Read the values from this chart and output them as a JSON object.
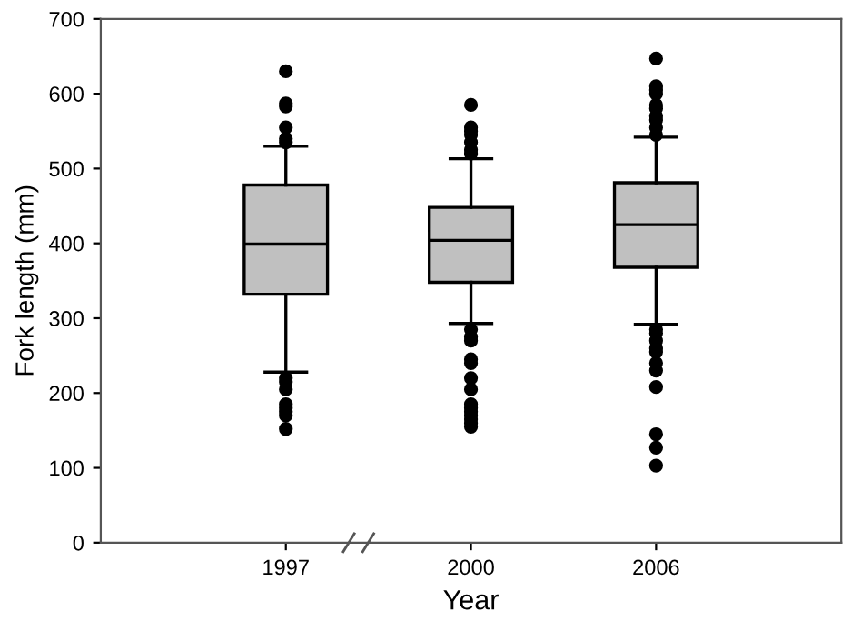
{
  "chart_data": {
    "type": "box",
    "xlabel": "Year",
    "ylabel": "Fork length (mm)",
    "categories": [
      "1997",
      "2000",
      "2006"
    ],
    "color": "#c0c0c0",
    "boxes": [
      {
        "low": 228,
        "q1": 332,
        "median": 399,
        "q3": 478,
        "high": 530,
        "outliers": [
          535,
          540,
          555,
          583,
          587,
          630,
          220,
          215,
          205,
          185,
          180,
          175,
          170,
          152
        ]
      },
      {
        "low": 293,
        "q1": 348,
        "median": 404,
        "q3": 448,
        "high": 513,
        "outliers": [
          520,
          525,
          535,
          545,
          550,
          555,
          585,
          285,
          275,
          270,
          245,
          240,
          220,
          205,
          185,
          180,
          175,
          170,
          165,
          160,
          155
        ]
      },
      {
        "low": 292,
        "q1": 368,
        "median": 425,
        "q3": 481,
        "high": 542,
        "outliers": [
          545,
          555,
          565,
          570,
          580,
          585,
          600,
          605,
          610,
          647,
          285,
          280,
          270,
          260,
          255,
          240,
          230,
          208,
          145,
          127,
          103
        ]
      }
    ],
    "ylim": [
      0,
      700
    ],
    "yticks": [
      0,
      100,
      200,
      300,
      400,
      500,
      600,
      700
    ],
    "grid": false
  }
}
